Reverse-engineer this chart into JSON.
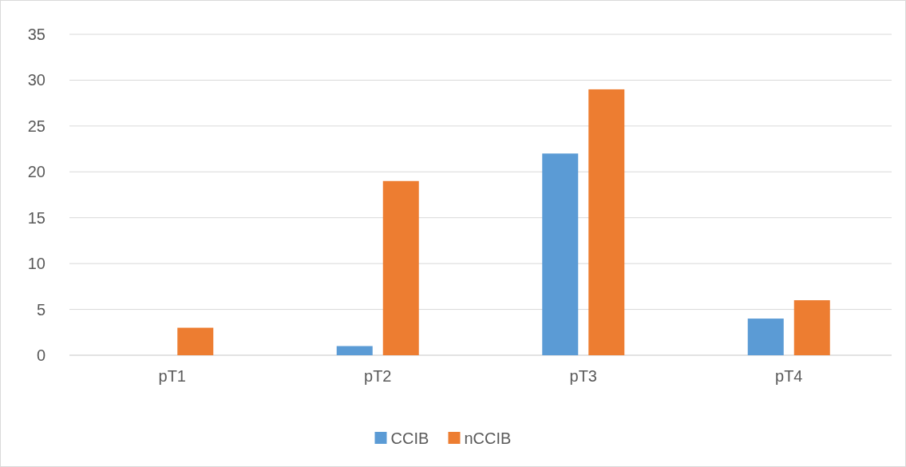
{
  "chart_data": {
    "type": "bar",
    "categories": [
      "pT1",
      "pT2",
      "pT3",
      "pT4"
    ],
    "series": [
      {
        "name": "CCIB",
        "color": "#5b9bd5",
        "values": [
          0,
          1,
          22,
          4
        ]
      },
      {
        "name": "nCCIB",
        "color": "#ed7d31",
        "values": [
          3,
          19,
          29,
          6
        ]
      }
    ],
    "ylim": [
      0,
      35
    ],
    "yticks": [
      0,
      5,
      10,
      15,
      20,
      25,
      30,
      35
    ],
    "grid": "y",
    "legend": "bottom"
  }
}
